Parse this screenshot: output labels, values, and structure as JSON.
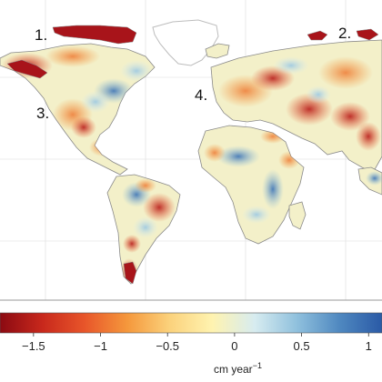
{
  "figure": {
    "region_labels": [
      "1.",
      "2.",
      "3.",
      "4."
    ],
    "colorbar": {
      "unit": "cm year",
      "unit_exponent": "−1",
      "ticks": [
        "−1.5",
        "−1",
        "−0.5",
        "0",
        "0.5",
        "1"
      ],
      "tick_values": [
        -1.5,
        -1,
        -0.5,
        0,
        0.5,
        1
      ],
      "range": [
        -1.75,
        1.1
      ],
      "colors": [
        "#8b0a12",
        "#c8281c",
        "#e8562a",
        "#f5983c",
        "#fbd27c",
        "#fff3b0",
        "#d7ecf0",
        "#8fc0dd",
        "#4f88c0",
        "#2a5aa6"
      ]
    },
    "map_colors": {
      "ocean": "#ffffff",
      "land_neutral": "#f3f0c9",
      "coastline": "#8a8a8a",
      "graticule": "#dcdcdc",
      "greenland_outline": "#bdbdbd"
    }
  }
}
